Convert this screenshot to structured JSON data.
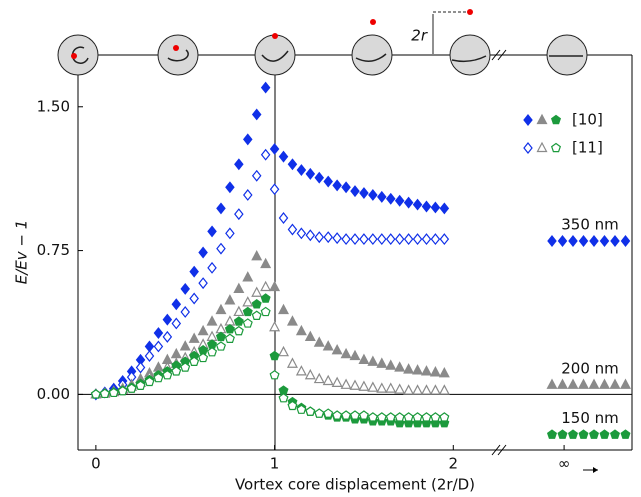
{
  "chart_data": {
    "type": "scatter",
    "xlabel": "Vortex core displacement (2r/D)",
    "ylabel": "E/Ev − 1",
    "annotation": "2r",
    "xlim": [
      -0.1,
      3.0
    ],
    "ylim": [
      -0.29,
      1.77
    ],
    "xticks": [
      0,
      1,
      2,
      {
        "value": 2.62,
        "label": "∞"
      }
    ],
    "yticks": [
      {
        "value": 0,
        "label": "0.00"
      },
      0.75,
      {
        "value": 1.5,
        "label": "1.50"
      }
    ],
    "legend": [
      "[10]",
      "[11]"
    ],
    "filled": [
      true,
      false
    ],
    "x": [
      0,
      0.05,
      0.1,
      0.15,
      0.2,
      0.25,
      0.3,
      0.35,
      0.4,
      0.45,
      0.5,
      0.55,
      0.6,
      0.65,
      0.7,
      0.75,
      0.8,
      0.85,
      0.9,
      0.95,
      1.0,
      1.05,
      1.1,
      1.15,
      1.2,
      1.25,
      1.3,
      1.35,
      1.4,
      1.45,
      1.5,
      1.55,
      1.6,
      1.65,
      1.7,
      1.75,
      1.8,
      1.85,
      1.9,
      1.95
    ],
    "series": [
      {
        "name": "350 nm",
        "color": "#1030e8",
        "marker": "diamond",
        "limit": 0.8,
        "sets": [
          {
            "values": [
              0,
              0.01,
              0.03,
              0.07,
              0.12,
              0.18,
              0.25,
              0.32,
              0.39,
              0.47,
              0.55,
              0.64,
              0.74,
              0.85,
              0.97,
              1.08,
              1.2,
              1.33,
              1.46,
              1.6,
              1.28,
              1.24,
              1.2,
              1.17,
              1.15,
              1.13,
              1.11,
              1.09,
              1.08,
              1.06,
              1.05,
              1.04,
              1.03,
              1.02,
              1.01,
              1.0,
              0.99,
              0.98,
              0.975,
              0.97
            ]
          },
          {
            "values": [
              0,
              0.01,
              0.02,
              0.05,
              0.09,
              0.14,
              0.2,
              0.25,
              0.3,
              0.37,
              0.43,
              0.5,
              0.58,
              0.66,
              0.76,
              0.84,
              0.94,
              1.04,
              1.14,
              1.25,
              1.07,
              0.92,
              0.86,
              0.84,
              0.83,
              0.82,
              0.82,
              0.815,
              0.81,
              0.81,
              0.81,
              0.81,
              0.81,
              0.81,
              0.81,
              0.81,
              0.81,
              0.81,
              0.81,
              0.81
            ]
          }
        ]
      },
      {
        "name": "200 nm",
        "color": "#8a8a8a",
        "marker": "triangle",
        "limit": 0.05,
        "sets": [
          {
            "values": [
              0,
              0.005,
              0.015,
              0.03,
              0.05,
              0.08,
              0.11,
              0.14,
              0.18,
              0.21,
              0.25,
              0.29,
              0.33,
              0.38,
              0.44,
              0.49,
              0.55,
              0.61,
              0.72,
              0.68,
              0.56,
              0.44,
              0.38,
              0.33,
              0.3,
              0.27,
              0.25,
              0.23,
              0.21,
              0.2,
              0.18,
              0.17,
              0.16,
              0.15,
              0.14,
              0.13,
              0.125,
              0.12,
              0.115,
              0.11
            ]
          },
          {
            "values": [
              0,
              0.004,
              0.012,
              0.025,
              0.04,
              0.06,
              0.09,
              0.11,
              0.14,
              0.16,
              0.19,
              0.22,
              0.26,
              0.3,
              0.34,
              0.38,
              0.43,
              0.48,
              0.53,
              0.56,
              0.35,
              0.22,
              0.16,
              0.12,
              0.1,
              0.08,
              0.07,
              0.06,
              0.05,
              0.045,
              0.04,
              0.035,
              0.03,
              0.03,
              0.025,
              0.02,
              0.02,
              0.02,
              0.02,
              0.02
            ]
          }
        ]
      },
      {
        "name": "150 nm",
        "color": "#1c9a3c",
        "marker": "pentagon",
        "limit": -0.21,
        "sets": [
          {
            "values": [
              0,
              0.004,
              0.01,
              0.02,
              0.035,
              0.055,
              0.075,
              0.1,
              0.12,
              0.15,
              0.17,
              0.2,
              0.23,
              0.26,
              0.3,
              0.34,
              0.38,
              0.43,
              0.47,
              0.5,
              0.2,
              0.02,
              -0.04,
              -0.07,
              -0.09,
              -0.1,
              -0.11,
              -0.12,
              -0.12,
              -0.13,
              -0.13,
              -0.14,
              -0.14,
              -0.14,
              -0.15,
              -0.15,
              -0.15,
              -0.15,
              -0.15,
              -0.15
            ]
          },
          {
            "values": [
              0,
              0.003,
              0.008,
              0.017,
              0.03,
              0.045,
              0.065,
              0.085,
              0.1,
              0.12,
              0.14,
              0.17,
              0.19,
              0.22,
              0.25,
              0.29,
              0.33,
              0.37,
              0.41,
              0.43,
              0.1,
              -0.02,
              -0.06,
              -0.08,
              -0.09,
              -0.1,
              -0.1,
              -0.11,
              -0.11,
              -0.11,
              -0.11,
              -0.12,
              -0.12,
              -0.12,
              -0.12,
              -0.12,
              -0.12,
              -0.12,
              -0.12,
              -0.12
            ]
          }
        ]
      }
    ]
  }
}
